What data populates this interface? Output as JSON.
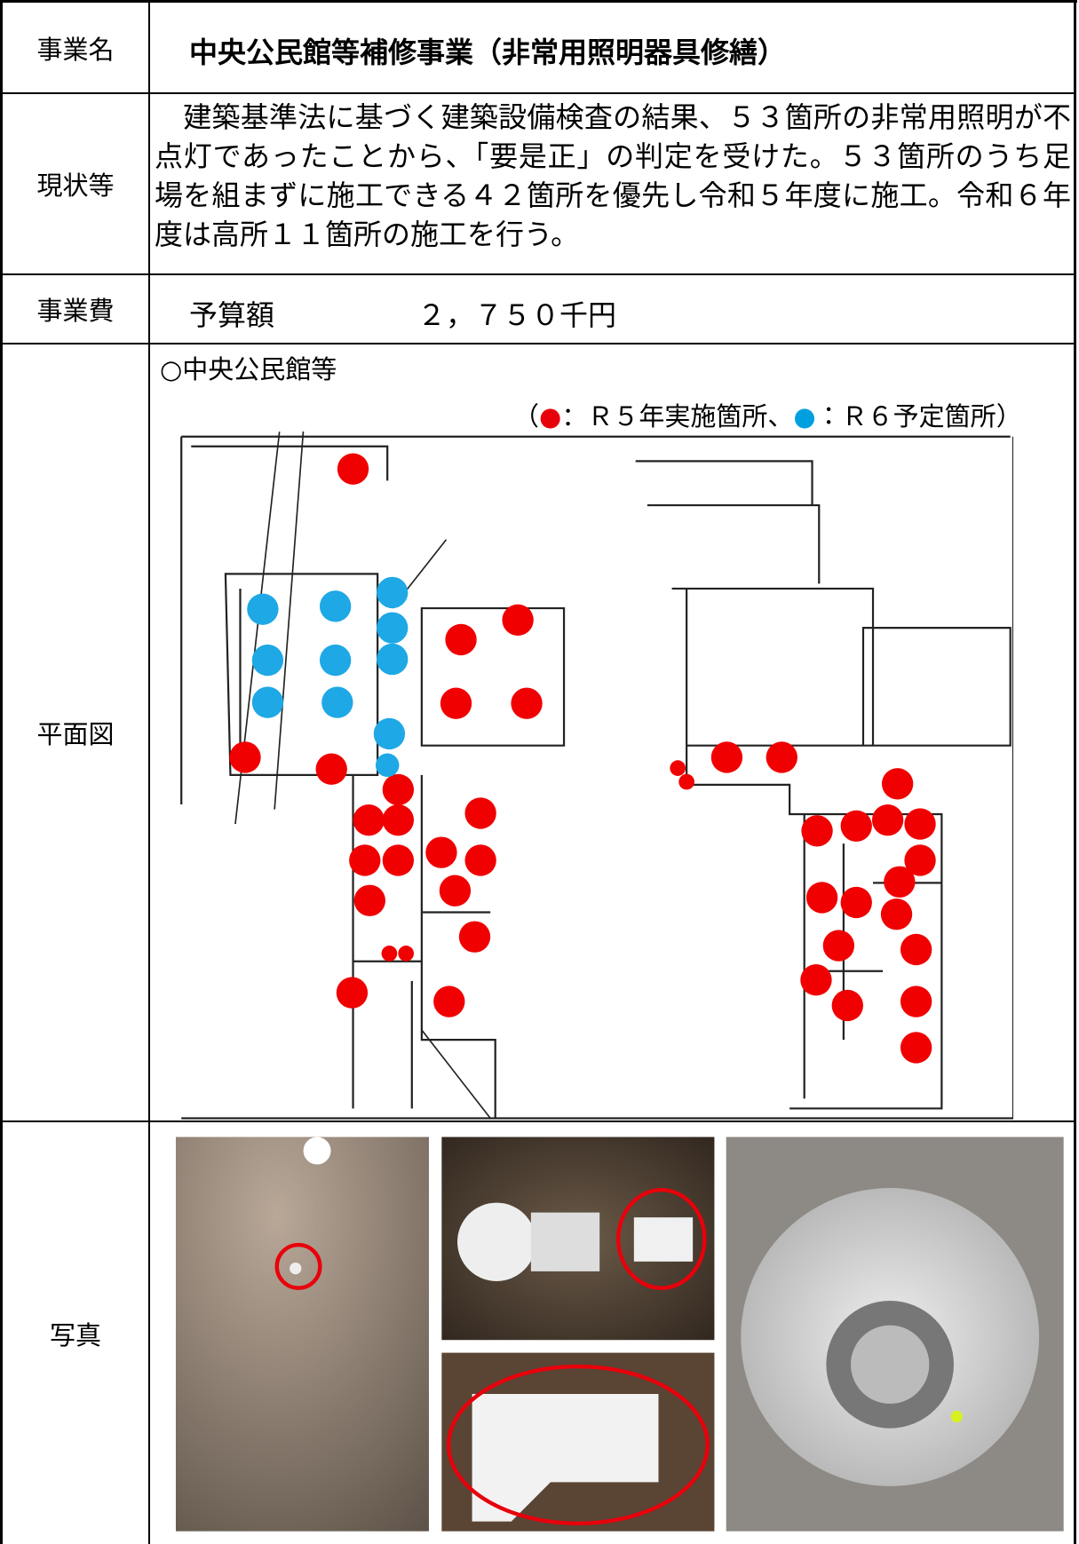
{
  "rows": [
    {
      "label": "事業名",
      "content": "中央公民館等補修事業（非常用照明器具修繕）"
    },
    {
      "label": "現状等",
      "content": "　建築基準法に基づく建築設備検査の結果、５３箇所の非常用照明が不点灯であったことから、「要是正」の判定を受けた。５３箇所のうち足場を組まずに施工できる４２箇所を優先し令和５年度に施工。令和６年度は高所１１箇所の施工を行う。"
    },
    {
      "label": "事業費",
      "budget_label": "予算額",
      "budget_amount": "２，７５０千円"
    },
    {
      "label": "平面図",
      "heading": "○中央公民館等",
      "legend": {
        "open": "（",
        "r5_symbol": "●",
        "r5_label": "：Ｒ５年実施箇所",
        "separator": "、",
        "r6_symbol": "●",
        "r6_label": "：Ｒ６予定箇所",
        "close": "）"
      }
    },
    {
      "label": "写真"
    }
  ]
}
